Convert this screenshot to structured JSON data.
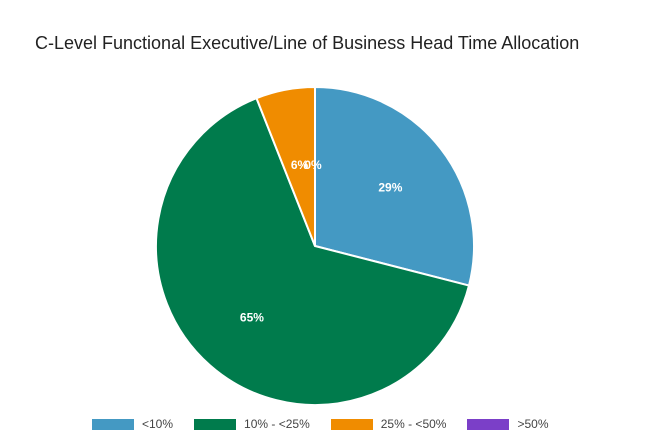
{
  "chart_data": {
    "type": "pie",
    "title": "C-Level Functional Executive/Line of Business Head Time Allocation",
    "categories": [
      "<10%",
      "10% - <25%",
      "25% - <50%",
      ">50%"
    ],
    "values": [
      29,
      65,
      6,
      0
    ],
    "labels": [
      "29%",
      "65%",
      "6%",
      "0%"
    ],
    "colors": [
      "#4499c3",
      "#007b4c",
      "#f08c00",
      "#7b3fc8"
    ],
    "legend_position": "bottom"
  }
}
